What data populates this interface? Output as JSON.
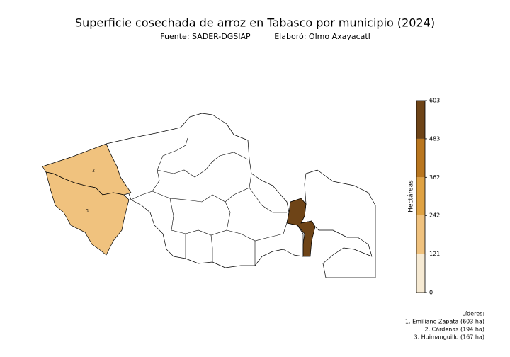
{
  "title": "Superficie cosechada de arroz en Tabasco por municipio (2024)",
  "subtitle": {
    "source": "Fuente: SADER-DGSIAP",
    "author": "Elaboró: Olmo Axayacatl"
  },
  "map": {
    "regions": [
      {
        "label": "2",
        "value": 194
      },
      {
        "label": "3",
        "value": 167
      },
      {
        "value": 603
      }
    ]
  },
  "colorbar": {
    "label": "Hectáreas",
    "lim": [
      0,
      603
    ],
    "ticks": [
      0,
      121,
      242,
      362,
      483,
      603
    ],
    "colors": [
      "#f6ead3",
      "#f0c27e",
      "#dfa243",
      "#b9761f",
      "#6e4417"
    ]
  },
  "leaders": {
    "title": "Líderes:",
    "items": [
      "1. Emiliano Zapata (603 ha)",
      "2. Cárdenas (194 ha)",
      "3. Huimanguillo (167 ha)"
    ]
  }
}
